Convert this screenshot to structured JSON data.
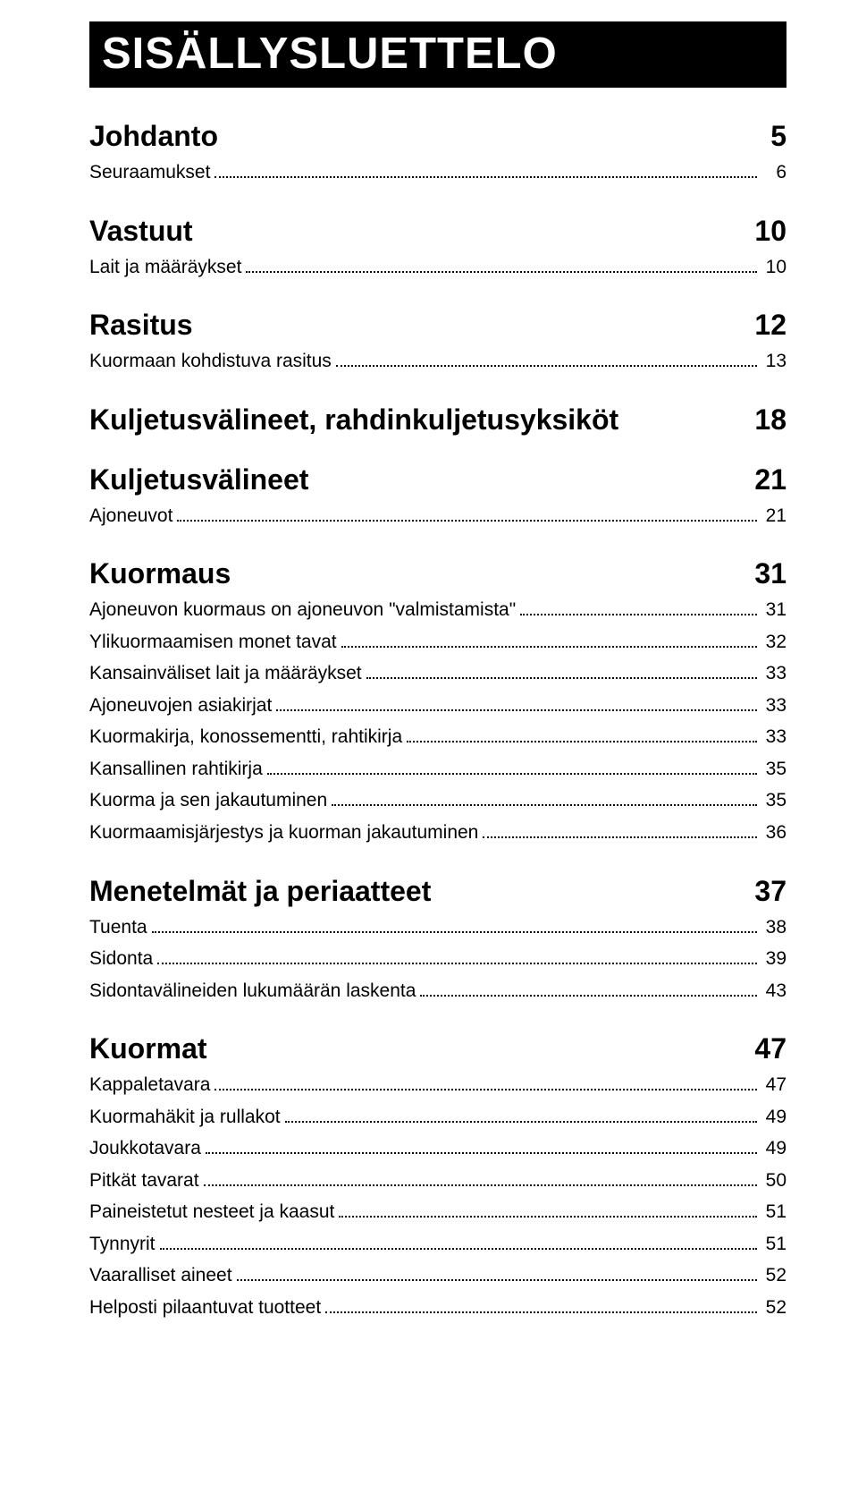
{
  "banner": "SISÄLLYSLUETTELO",
  "page_bg": "#ffffff",
  "text_color": "#000000",
  "banner_bg": "#000000",
  "banner_fg": "#ffffff",
  "font": {
    "banner_size": 49,
    "section_size": 32,
    "row_size": 21
  },
  "sections": [
    {
      "title": "Johdanto",
      "page": "5",
      "items": [
        {
          "label": "Seuraamukset",
          "page": "6"
        }
      ]
    },
    {
      "title": "Vastuut",
      "page": "10",
      "items": [
        {
          "label": "Lait ja määräykset",
          "page": "10"
        }
      ]
    },
    {
      "title": "Rasitus",
      "page": "12",
      "items": [
        {
          "label": "Kuormaan kohdistuva rasitus",
          "page": "13"
        }
      ]
    },
    {
      "title": "Kuljetusvälineet, rahdinkuljetusyksiköt",
      "page": "18",
      "items": []
    },
    {
      "title": "Kuljetusvälineet",
      "page": "21",
      "items": [
        {
          "label": "Ajoneuvot",
          "page": "21"
        }
      ]
    },
    {
      "title": "Kuormaus",
      "page": "31",
      "items": [
        {
          "label": "Ajoneuvon kuormaus on ajoneuvon \"valmistamista\"",
          "page": "31"
        },
        {
          "label": "Ylikuormaamisen monet tavat",
          "page": "32"
        },
        {
          "label": "Kansainväliset lait ja määräykset",
          "page": "33"
        },
        {
          "label": "Ajoneuvojen asiakirjat",
          "page": "33"
        },
        {
          "label": "Kuormakirja, konossementti, rahtikirja",
          "page": "33"
        },
        {
          "label": "Kansallinen rahtikirja",
          "page": "35"
        },
        {
          "label": "Kuorma ja sen jakautuminen",
          "page": "35"
        },
        {
          "label": "Kuormaamisjärjestys ja kuorman jakautuminen",
          "page": "36"
        }
      ]
    },
    {
      "title": "Menetelmät ja periaatteet",
      "page": "37",
      "items": [
        {
          "label": "Tuenta",
          "page": "38"
        },
        {
          "label": "Sidonta",
          "page": "39"
        },
        {
          "label": "Sidontavälineiden lukumäärän laskenta",
          "page": "43"
        }
      ]
    },
    {
      "title": "Kuormat",
      "page": "47",
      "items": [
        {
          "label": "Kappaletavara",
          "page": "47"
        },
        {
          "label": "Kuormahäkit ja rullakot",
          "page": "49"
        },
        {
          "label": "Joukkotavara",
          "page": "49"
        },
        {
          "label": "Pitkät tavarat",
          "page": "50"
        },
        {
          "label": "Paineistetut nesteet ja kaasut",
          "page": "51"
        },
        {
          "label": "Tynnyrit",
          "page": "51"
        },
        {
          "label": "Vaaralliset aineet",
          "page": "52"
        },
        {
          "label": "Helposti pilaantuvat tuotteet",
          "page": "52"
        }
      ]
    }
  ]
}
